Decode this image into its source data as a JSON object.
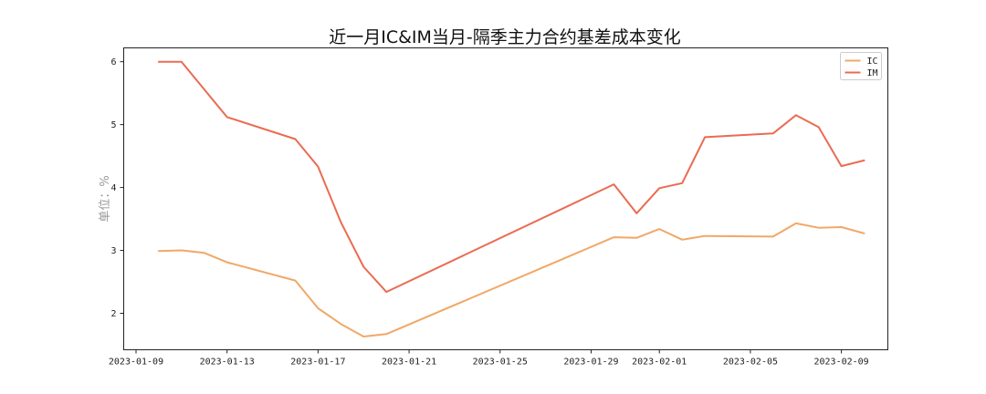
{
  "chart_data": {
    "type": "line",
    "title": "近一月IC&IM当月-隔季主力合约基差成本变化",
    "xlabel": "",
    "ylabel": "单位：%",
    "ylim": [
      1.42,
      6.22
    ],
    "xlim": [
      "2023-01-08T11:00",
      "2023-02-11T01:00"
    ],
    "yticks": [
      2,
      3,
      4,
      5,
      6
    ],
    "xticks": [
      "2023-01-09",
      "2023-01-13",
      "2023-01-17",
      "2023-01-21",
      "2023-01-25",
      "2023-01-29",
      "2023-02-01",
      "2023-02-05",
      "2023-02-09"
    ],
    "grid": false,
    "legend": "top-right",
    "series": [
      {
        "name": "IC",
        "color": "#f0a868",
        "points": [
          [
            "2023-01-10",
            2.99
          ],
          [
            "2023-01-11",
            3.0
          ],
          [
            "2023-01-12",
            2.96
          ],
          [
            "2023-01-13",
            2.81
          ],
          [
            "2023-01-16",
            2.52
          ],
          [
            "2023-01-17",
            2.08
          ],
          [
            "2023-01-18",
            1.83
          ],
          [
            "2023-01-19",
            1.63
          ],
          [
            "2023-01-20",
            1.67
          ],
          [
            "2023-01-30",
            3.21
          ],
          [
            "2023-01-31",
            3.2
          ],
          [
            "2023-02-01",
            3.34
          ],
          [
            "2023-02-02",
            3.17
          ],
          [
            "2023-02-03",
            3.23
          ],
          [
            "2023-02-06",
            3.22
          ],
          [
            "2023-02-07",
            3.43
          ],
          [
            "2023-02-08",
            3.36
          ],
          [
            "2023-02-09",
            3.37
          ],
          [
            "2023-02-10",
            3.27
          ]
        ]
      },
      {
        "name": "IM",
        "color": "#ea6b52",
        "points": [
          [
            "2023-01-10",
            6.0
          ],
          [
            "2023-01-11",
            6.0
          ],
          [
            "2023-01-13",
            5.12
          ],
          [
            "2023-01-16",
            4.77
          ],
          [
            "2023-01-17",
            4.33
          ],
          [
            "2023-01-18",
            3.45
          ],
          [
            "2023-01-19",
            2.74
          ],
          [
            "2023-01-20",
            2.34
          ],
          [
            "2023-01-30",
            4.05
          ],
          [
            "2023-01-31",
            3.59
          ],
          [
            "2023-02-01",
            3.99
          ],
          [
            "2023-02-02",
            4.07
          ],
          [
            "2023-02-03",
            4.8
          ],
          [
            "2023-02-06",
            4.86
          ],
          [
            "2023-02-07",
            5.15
          ],
          [
            "2023-02-08",
            4.96
          ],
          [
            "2023-02-09",
            4.34
          ],
          [
            "2023-02-10",
            4.43
          ]
        ]
      }
    ]
  }
}
